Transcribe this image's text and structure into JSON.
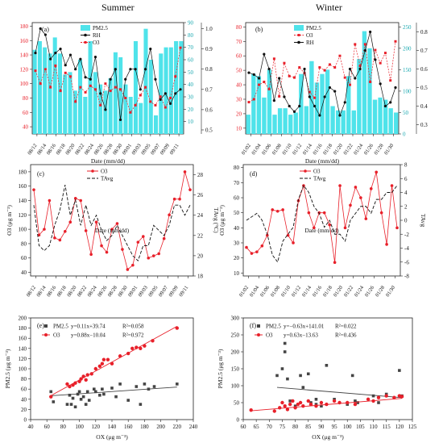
{
  "titles": {
    "summer": "Summer",
    "winter": "Winter"
  },
  "colors": {
    "pm25": "#4fe3ea",
    "o3": "#e8202a",
    "rh": "#111111",
    "tavg": "#111111",
    "grey": "#444444"
  },
  "chart_data": [
    {
      "id": "a",
      "panel_label": "(a)",
      "type": "bar+line",
      "xlabel": "Date (mm/dd)",
      "tick_labels": [
        "08/12",
        "08/14",
        "08/16",
        "08/18",
        "08/20",
        "08/22",
        "08/24",
        "08/26",
        "08/28",
        "08/30",
        "09/01",
        "09/03",
        "09/05",
        "09/07",
        "09/09",
        "09/11"
      ],
      "legend": [
        "PM2.5",
        "RH",
        "O3"
      ],
      "y_left_ticks": [
        "40",
        "60",
        "80",
        "100",
        "120",
        "140",
        "160",
        "180"
      ],
      "y_mid_ticks": [
        "10",
        "20",
        "30",
        "40",
        "50",
        "60",
        "70",
        "80",
        "90"
      ],
      "y_right_ticks": [
        "0.5",
        "0.6",
        "0.7",
        "0.8",
        "0.9",
        "1.0"
      ],
      "ylim_left": [
        30,
        185
      ],
      "ylim_mid": [
        0,
        90
      ],
      "ylim_right": [
        0.48,
        1.03
      ],
      "series": [
        {
          "name": "PM2.5",
          "kind": "bar",
          "axis": "mid",
          "values": [
            68,
            75,
            70,
            65,
            78,
            65,
            48,
            50,
            35,
            60,
            30,
            75,
            50,
            40,
            35,
            45,
            66,
            62,
            40,
            30,
            75,
            25,
            85,
            60,
            15,
            65,
            70,
            70,
            75,
            75
          ]
        },
        {
          "name": "RH",
          "kind": "line",
          "axis": "right",
          "values": [
            0.88,
            1.0,
            0.97,
            0.85,
            0.88,
            0.9,
            0.82,
            0.87,
            0.8,
            0.85,
            0.76,
            0.75,
            0.86,
            0.68,
            0.6,
            0.75,
            0.8,
            0.55,
            0.75,
            0.8,
            0.8,
            0.7,
            0.8,
            0.9,
            0.75,
            0.65,
            0.68,
            0.63,
            0.68,
            0.7
          ]
        },
        {
          "name": "O3",
          "kind": "scatter",
          "axis": "left",
          "values": [
            118,
            100,
            120,
            95,
            125,
            90,
            115,
            110,
            75,
            95,
            88,
            97,
            92,
            70,
            100,
            90,
            95,
            92,
            80,
            60,
            70,
            84,
            95,
            75,
            70,
            82,
            67,
            80,
            110,
            150
          ]
        }
      ]
    },
    {
      "id": "b",
      "panel_label": "(b)",
      "type": "bar+line",
      "xlabel": "Date (mm/dd)",
      "tick_labels": [
        "01/02",
        "01/04",
        "01/06",
        "01/08",
        "01/10",
        "01/12",
        "01/14",
        "01/16",
        "01/18",
        "01/20",
        "01/22",
        "01/24",
        "01/26",
        "01/28",
        "01/30"
      ],
      "legend": [
        "PM2.5",
        "O3",
        "RH"
      ],
      "y_left_ticks": [
        "10",
        "20",
        "30",
        "40",
        "50",
        "60",
        "70",
        "80"
      ],
      "y_mid_ticks": [
        "0",
        "50",
        "100",
        "150",
        "200",
        "250"
      ],
      "y_right_ticks": [
        "0.3",
        "0.4",
        "0.5",
        "0.6",
        "0.7",
        "0.8"
      ],
      "ylim_left": [
        6,
        83
      ],
      "ylim_mid": [
        0,
        260
      ],
      "ylim_right": [
        0.25,
        0.85
      ],
      "series": [
        {
          "name": "PM2.5",
          "kind": "bar",
          "axis": "mid",
          "values": [
            45,
            140,
            135,
            85,
            150,
            45,
            60,
            60,
            45,
            50,
            140,
            65,
            170,
            120,
            140,
            150,
            65,
            55,
            55,
            135,
            55,
            175,
            240,
            200,
            80,
            85,
            80,
            60,
            50
          ]
        },
        {
          "name": "O3",
          "kind": "scatter",
          "axis": "left",
          "values": [
            28,
            30,
            40,
            42,
            37,
            58,
            32,
            55,
            46,
            45,
            52,
            48,
            35,
            31,
            52,
            50,
            54,
            52,
            60,
            45,
            40,
            68,
            53,
            68,
            42,
            64,
            55,
            62,
            43,
            70
          ]
        },
        {
          "name": "RH",
          "kind": "line",
          "axis": "right",
          "values": [
            0.58,
            0.57,
            0.55,
            0.68,
            0.6,
            0.43,
            0.55,
            0.45,
            0.4,
            0.37,
            0.4,
            0.6,
            0.45,
            0.4,
            0.35,
            0.45,
            0.5,
            0.48,
            0.35,
            0.42,
            0.6,
            0.55,
            0.6,
            0.7,
            0.8,
            0.65,
            0.52,
            0.4,
            0.42,
            0.5
          ]
        }
      ]
    },
    {
      "id": "c",
      "panel_label": "(c)",
      "type": "line",
      "xlabel": "Date (mm/dd)",
      "ylabel_left": "O3 (μg m⁻³)",
      "ylabel_right": "TAvg (°C)",
      "tick_labels": [
        "08/12",
        "08/14",
        "08/16",
        "08/18",
        "08/20",
        "08/22",
        "08/24",
        "08/26",
        "08/28",
        "08/30",
        "09/01",
        "09/03",
        "09/05",
        "09/07",
        "09/09",
        "09/11"
      ],
      "legend": [
        "O3",
        "TAvg"
      ],
      "y_left_ticks": [
        "40",
        "60",
        "80",
        "100",
        "120",
        "140",
        "160",
        "180"
      ],
      "y_right_ticks": [
        "18",
        "20",
        "22",
        "24",
        "26",
        "28"
      ],
      "ylim_left": [
        35,
        190
      ],
      "ylim_right": [
        18,
        29
      ],
      "series": [
        {
          "name": "O3",
          "axis": "left",
          "values": [
            155,
            92,
            100,
            140,
            88,
            85,
            97,
            110,
            143,
            140,
            98,
            65,
            110,
            77,
            68,
            100,
            108,
            72,
            44,
            50,
            82,
            90,
            60,
            63,
            66,
            87,
            120,
            142,
            142,
            180,
            155
          ]
        },
        {
          "name": "TAvg",
          "axis": "right",
          "values": [
            25,
            21,
            20.5,
            21,
            23,
            24.5,
            27,
            24,
            25.5,
            23,
            25,
            23,
            24,
            22.5,
            21.5,
            22,
            23,
            22,
            21,
            20,
            19.5,
            21,
            21,
            23,
            22.5,
            22,
            23,
            25,
            25,
            24,
            25
          ]
        }
      ]
    },
    {
      "id": "d",
      "panel_label": "(d)",
      "type": "line",
      "xlabel": "Date (mm/dd)",
      "ylabel_left": "O3 (μg m⁻³)",
      "ylabel_right": "TAvg",
      "tick_labels": [
        "01/02",
        "01/04",
        "01/06",
        "01/08",
        "01/10",
        "01/12",
        "01/14",
        "01/16",
        "01/18",
        "01/20",
        "01/22",
        "01/24",
        "01/26",
        "01/28",
        "01/30"
      ],
      "legend": [
        "O3",
        "TAvg"
      ],
      "y_left_ticks": [
        "10",
        "20",
        "30",
        "40",
        "50",
        "60",
        "70",
        "80"
      ],
      "y_right_ticks": [
        "-8",
        "-6",
        "-4",
        "-2",
        "0",
        "2",
        "4",
        "6",
        "8"
      ],
      "ylim_left": [
        8,
        82
      ],
      "ylim_right": [
        -8,
        8
      ],
      "series": [
        {
          "name": "O3",
          "axis": "left",
          "values": [
            27,
            23,
            24,
            28,
            35,
            52,
            51,
            52,
            35,
            30,
            58,
            68,
            50,
            40,
            50,
            50,
            42,
            17,
            68,
            40,
            55,
            67,
            60,
            46,
            66,
            77,
            50,
            29,
            68,
            40
          ]
        },
        {
          "name": "TAvg",
          "axis": "right",
          "values": [
            0,
            0.5,
            1,
            0,
            -2,
            -5,
            -6,
            -3,
            -2,
            -1,
            3,
            5,
            4,
            2,
            1,
            -1,
            0,
            -2,
            -2,
            -3,
            0,
            1,
            2,
            2,
            1,
            3,
            3,
            4,
            4,
            5
          ]
        }
      ]
    },
    {
      "id": "e",
      "panel_label": "(e)",
      "type": "scatter",
      "xlabel": "OX (μg m⁻³)",
      "ylabel": "PM2.5 (μg m⁻³)",
      "x_ticks": [
        "40",
        "60",
        "80",
        "100",
        "120",
        "140",
        "160",
        "180",
        "200",
        "220",
        "240"
      ],
      "y_ticks": [
        "0",
        "20",
        "40",
        "60",
        "80",
        "100",
        "120",
        "140",
        "160",
        "180",
        "200"
      ],
      "xlim": [
        40,
        240
      ],
      "ylim": [
        0,
        200
      ],
      "legend": [
        {
          "series": "PM2.5",
          "equation": "y=0.11x+39.74",
          "r2": "R²=0.058"
        },
        {
          "series": "O3",
          "equation": "y=0.88x−10.04",
          "r2": "R²=0.972"
        }
      ],
      "series": [
        {
          "name": "PM2.5",
          "fit": {
            "slope": 0.11,
            "intercept": 39.74
          },
          "points": [
            [
              65,
              55
            ],
            [
              68,
              35
            ],
            [
              85,
              30
            ],
            [
              88,
              48
            ],
            [
              90,
              30
            ],
            [
              92,
              42
            ],
            [
              95,
              25
            ],
            [
              98,
              50
            ],
            [
              100,
              55
            ],
            [
              102,
              40
            ],
            [
              105,
              45
            ],
            [
              108,
              30
            ],
            [
              110,
              55
            ],
            [
              112,
              38
            ],
            [
              118,
              60
            ],
            [
              120,
              55
            ],
            [
              125,
              48
            ],
            [
              128,
              60
            ],
            [
              130,
              50
            ],
            [
              140,
              62
            ],
            [
              145,
              45
            ],
            [
              150,
              70
            ],
            [
              160,
              38
            ],
            [
              170,
              65
            ],
            [
              175,
              30
            ],
            [
              180,
              70
            ],
            [
              185,
              60
            ],
            [
              192,
              65
            ],
            [
              220,
              70
            ]
          ]
        },
        {
          "name": "O3",
          "fit": {
            "slope": 0.88,
            "intercept": -10.04
          },
          "points": [
            [
              65,
              45
            ],
            [
              85,
              70
            ],
            [
              88,
              65
            ],
            [
              92,
              68
            ],
            [
              95,
              72
            ],
            [
              100,
              75
            ],
            [
              102,
              80
            ],
            [
              105,
              85
            ],
            [
              108,
              78
            ],
            [
              110,
              88
            ],
            [
              115,
              90
            ],
            [
              120,
              100
            ],
            [
              125,
              105
            ],
            [
              128,
              110
            ],
            [
              130,
              118
            ],
            [
              135,
              118
            ],
            [
              140,
              110
            ],
            [
              150,
              125
            ],
            [
              160,
              130
            ],
            [
              165,
              140
            ],
            [
              170,
              142
            ],
            [
              175,
              140
            ],
            [
              180,
              145
            ],
            [
              190,
              155
            ],
            [
              220,
              180
            ]
          ]
        }
      ]
    },
    {
      "id": "f",
      "panel_label": "(f)",
      "type": "scatter",
      "xlabel": "OX (μg m⁻³)",
      "ylabel": "PM2.5 (μg m⁻³)",
      "x_ticks": [
        "60",
        "65",
        "70",
        "75",
        "80",
        "85",
        "90",
        "95",
        "100",
        "105",
        "110",
        "115",
        "120",
        "125"
      ],
      "y_ticks": [
        "0",
        "50",
        "100",
        "150",
        "200",
        "250",
        "300"
      ],
      "xlim": [
        60,
        125
      ],
      "ylim": [
        0,
        300
      ],
      "legend": [
        {
          "series": "PM2.5",
          "equation": "y=−0.63x+141.01",
          "r2": "R²=0.022"
        },
        {
          "series": "O3",
          "equation": "y=0.63x−13.63",
          "r2": "R²=0.436"
        }
      ],
      "series": [
        {
          "name": "PM2.5",
          "fit": {
            "slope": -0.63,
            "intercept": 141.01
          },
          "points": [
            [
              73,
              130
            ],
            [
              75,
              150
            ],
            [
              76,
              225
            ],
            [
              76,
              200
            ],
            [
              77,
              120
            ],
            [
              78,
              55
            ],
            [
              80,
              40
            ],
            [
              82,
              130
            ],
            [
              83,
              95
            ],
            [
              85,
              135
            ],
            [
              86,
              50
            ],
            [
              88,
              60
            ],
            [
              90,
              40
            ],
            [
              92,
              160
            ],
            [
              95,
              60
            ],
            [
              100,
              45
            ],
            [
              102,
              130
            ],
            [
              104,
              50
            ],
            [
              110,
              70
            ],
            [
              112,
              50
            ],
            [
              115,
              75
            ],
            [
              120,
              145
            ],
            [
              121,
              70
            ],
            [
              103,
              55
            ],
            [
              88,
              45
            ]
          ]
        },
        {
          "name": "O3",
          "fit": {
            "slope": 0.63,
            "intercept": -13.63
          },
          "points": [
            [
              63,
              28
            ],
            [
              72,
              25
            ],
            [
              74,
              35
            ],
            [
              75,
              50
            ],
            [
              76,
              40
            ],
            [
              77,
              30
            ],
            [
              78,
              45
            ],
            [
              79,
              55
            ],
            [
              80,
              35
            ],
            [
              81,
              45
            ],
            [
              82,
              50
            ],
            [
              83,
              40
            ],
            [
              85,
              55
            ],
            [
              86,
              45
            ],
            [
              88,
              40
            ],
            [
              90,
              50
            ],
            [
              92,
              45
            ],
            [
              95,
              55
            ],
            [
              97,
              50
            ],
            [
              100,
              50
            ],
            [
              103,
              45
            ],
            [
              108,
              60
            ],
            [
              110,
              55
            ],
            [
              112,
              65
            ],
            [
              115,
              70
            ],
            [
              118,
              65
            ],
            [
              120,
              70
            ],
            [
              121,
              68
            ]
          ]
        }
      ]
    }
  ]
}
